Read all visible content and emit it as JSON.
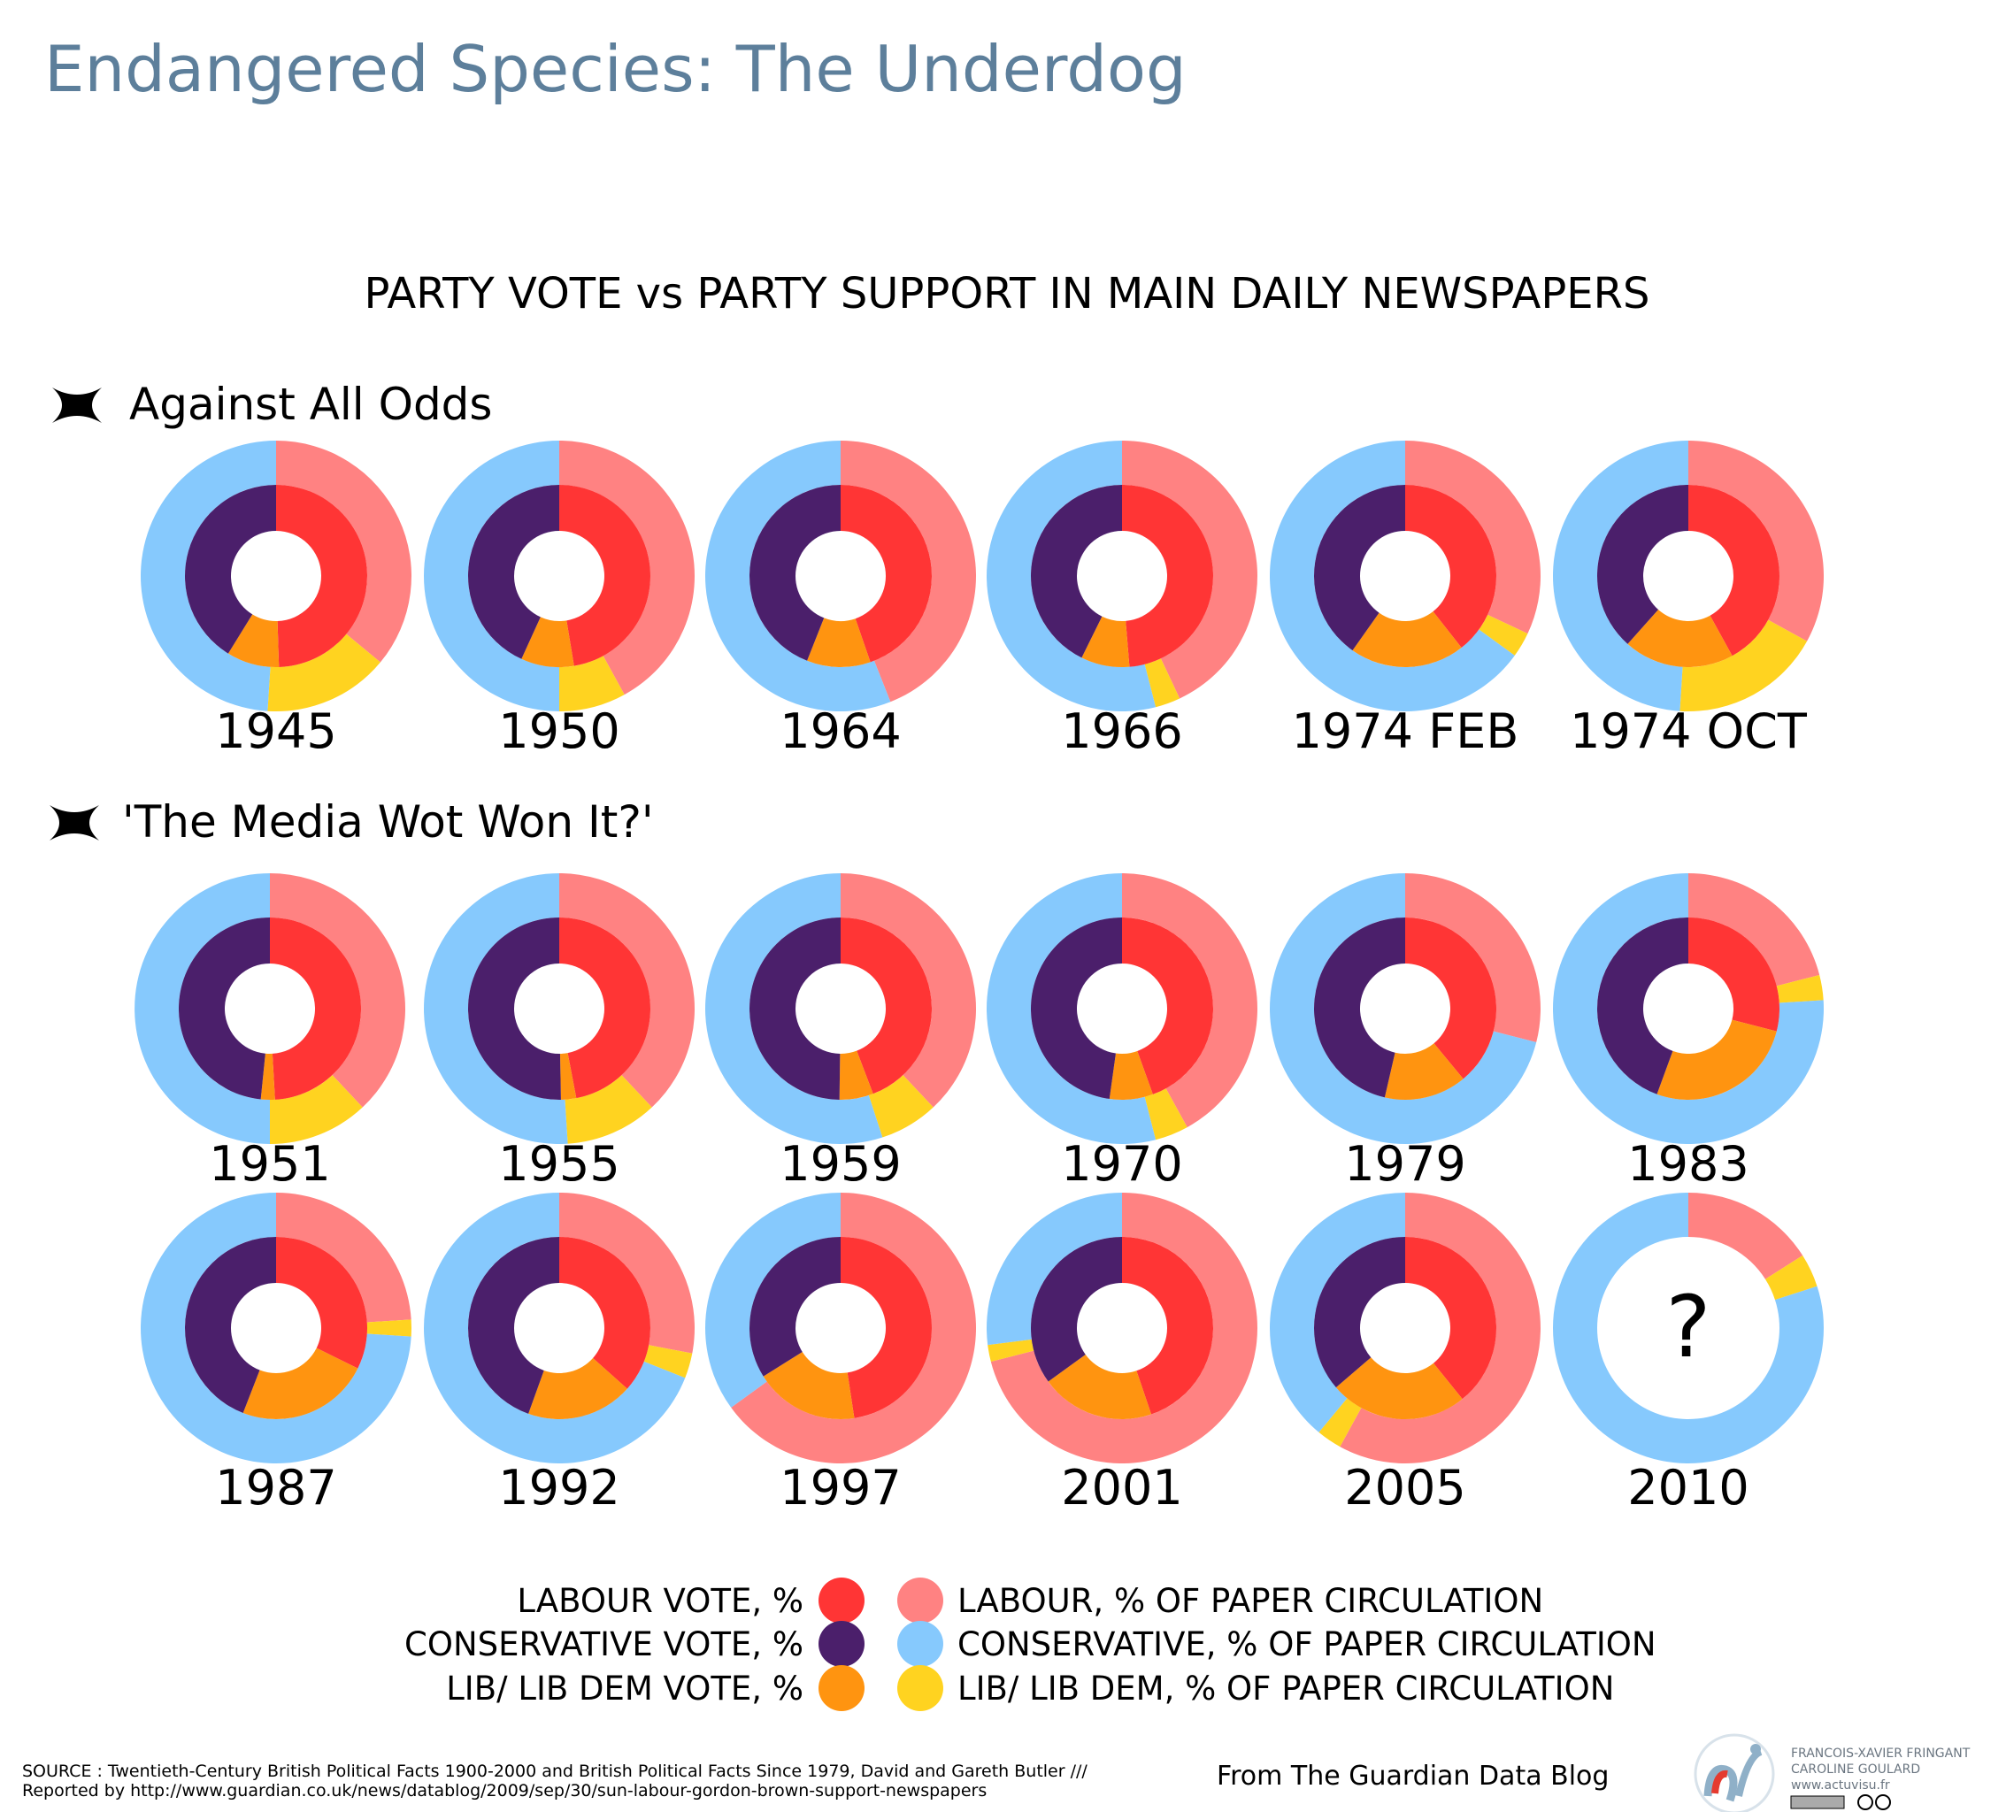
{
  "title": "Endangered Species: The Underdog",
  "chart_data": {
    "type": "pie",
    "title": "PARTY VOTE vs PARTY SUPPORT IN MAIN DAILY NEWSPAPERS",
    "colors": {
      "labour_vote": "#ff3535",
      "conservative_vote": "#4b1f6b",
      "libdem_vote": "#ff9410",
      "labour_paper": "#ff8282",
      "conservative_paper": "#86c9fd",
      "libdem_paper": "#ffd320"
    },
    "groups": [
      {
        "heading": "Against All Odds",
        "rows": [
          [
            {
              "label": "1945",
              "vote": {
                "labour": 49.5,
                "libdem": 9.3,
                "conservative": 41.2
              },
              "paper": {
                "labour": 36,
                "libdem": 15,
                "conservative": 49
              }
            },
            {
              "label": "1950",
              "vote": {
                "labour": 47.4,
                "libdem": 9.4,
                "conservative": 43.2
              },
              "paper": {
                "labour": 42,
                "libdem": 8,
                "conservative": 50
              }
            },
            {
              "label": "1964",
              "vote": {
                "labour": 44.7,
                "libdem": 11.3,
                "conservative": 44.0
              },
              "paper": {
                "labour": 44,
                "libdem": 0,
                "conservative": 56
              }
            },
            {
              "label": "1966",
              "vote": {
                "labour": 48.7,
                "libdem": 8.6,
                "conservative": 42.7
              },
              "paper": {
                "labour": 43,
                "libdem": 3,
                "conservative": 54
              }
            },
            {
              "label": "1974 FEB",
              "vote": {
                "labour": 39.4,
                "libdem": 20.4,
                "conservative": 40.2
              },
              "paper": {
                "labour": 32,
                "libdem": 3,
                "conservative": 65
              }
            },
            {
              "label": "1974 OCT",
              "vote": {
                "labour": 42.0,
                "libdem": 19.6,
                "conservative": 38.4
              },
              "paper": {
                "labour": 33,
                "libdem": 18,
                "conservative": 49
              }
            }
          ]
        ]
      },
      {
        "heading": "'The Media Wot Won It?'",
        "rows": [
          [
            {
              "label": "1951",
              "vote": {
                "labour": 49.1,
                "libdem": 2.5,
                "conservative": 48.4
              },
              "paper": {
                "labour": 38,
                "libdem": 12,
                "conservative": 50
              }
            },
            {
              "label": "1955",
              "vote": {
                "labour": 47.0,
                "libdem": 2.7,
                "conservative": 50.3
              },
              "paper": {
                "labour": 38,
                "libdem": 11,
                "conservative": 51
              }
            },
            {
              "label": "1959",
              "vote": {
                "labour": 44.2,
                "libdem": 6.0,
                "conservative": 49.8
              },
              "paper": {
                "labour": 38,
                "libdem": 7,
                "conservative": 55
              }
            },
            {
              "label": "1970",
              "vote": {
                "labour": 44.5,
                "libdem": 7.7,
                "conservative": 47.8
              },
              "paper": {
                "labour": 42,
                "libdem": 4,
                "conservative": 54
              }
            },
            {
              "label": "1979",
              "vote": {
                "labour": 39.0,
                "libdem": 14.6,
                "conservative": 46.4
              },
              "paper": {
                "labour": 29,
                "libdem": 0,
                "conservative": 71
              }
            },
            {
              "label": "1983",
              "vote": {
                "labour": 29.0,
                "libdem": 26.6,
                "conservative": 44.4
              },
              "paper": {
                "labour": 21,
                "libdem": 3,
                "conservative": 76
              }
            }
          ],
          [
            {
              "label": "1987",
              "vote": {
                "labour": 32.3,
                "libdem": 23.6,
                "conservative": 44.1
              },
              "paper": {
                "labour": 24,
                "libdem": 2,
                "conservative": 74
              }
            },
            {
              "label": "1992",
              "vote": {
                "labour": 36.6,
                "libdem": 18.9,
                "conservative": 44.5
              },
              "paper": {
                "labour": 28,
                "libdem": 3,
                "conservative": 69
              }
            },
            {
              "label": "1997",
              "vote": {
                "labour": 47.6,
                "libdem": 18.5,
                "conservative": 33.9
              },
              "paper": {
                "labour": 65,
                "libdem": 0,
                "conservative": 35
              }
            },
            {
              "label": "2001",
              "vote": {
                "labour": 44.8,
                "libdem": 20.2,
                "conservative": 35.0
              },
              "paper": {
                "labour": 71,
                "libdem": 2,
                "conservative": 27
              }
            },
            {
              "label": "2005",
              "vote": {
                "labour": 39.2,
                "libdem": 24.5,
                "conservative": 36.3
              },
              "paper": {
                "labour": 58,
                "libdem": 3,
                "conservative": 39
              }
            },
            {
              "label": "2010",
              "vote": null,
              "center_text": "?",
              "paper": {
                "labour": 16,
                "libdem": 4,
                "conservative": 80
              }
            }
          ]
        ]
      }
    ],
    "legend": {
      "vote": [
        "LABOUR VOTE, %",
        "CONSERVATIVE VOTE, %",
        "LIB/ LIB DEM VOTE, %"
      ],
      "paper": [
        "LABOUR, % OF PAPER CIRCULATION",
        "CONSERVATIVE, % OF PAPER CIRCULATION",
        "LIB/ LIB DEM, % OF PAPER CIRCULATION"
      ]
    }
  },
  "footer": {
    "source": "SOURCE : Twentieth-Century British Political Facts 1900-2000 and British Political Facts Since 1979, David and Gareth Butler ///",
    "reported": "Reported by  http://www.guardian.co.uk/news/datablog/2009/sep/30/sun-labour-gordon-brown-support-newspapers",
    "from": "From The Guardian Data Blog",
    "credits": [
      "FRANCOIS-XAVIER FRINGANT",
      "CAROLINE GOULARD",
      "www.actuvisu.fr"
    ]
  }
}
